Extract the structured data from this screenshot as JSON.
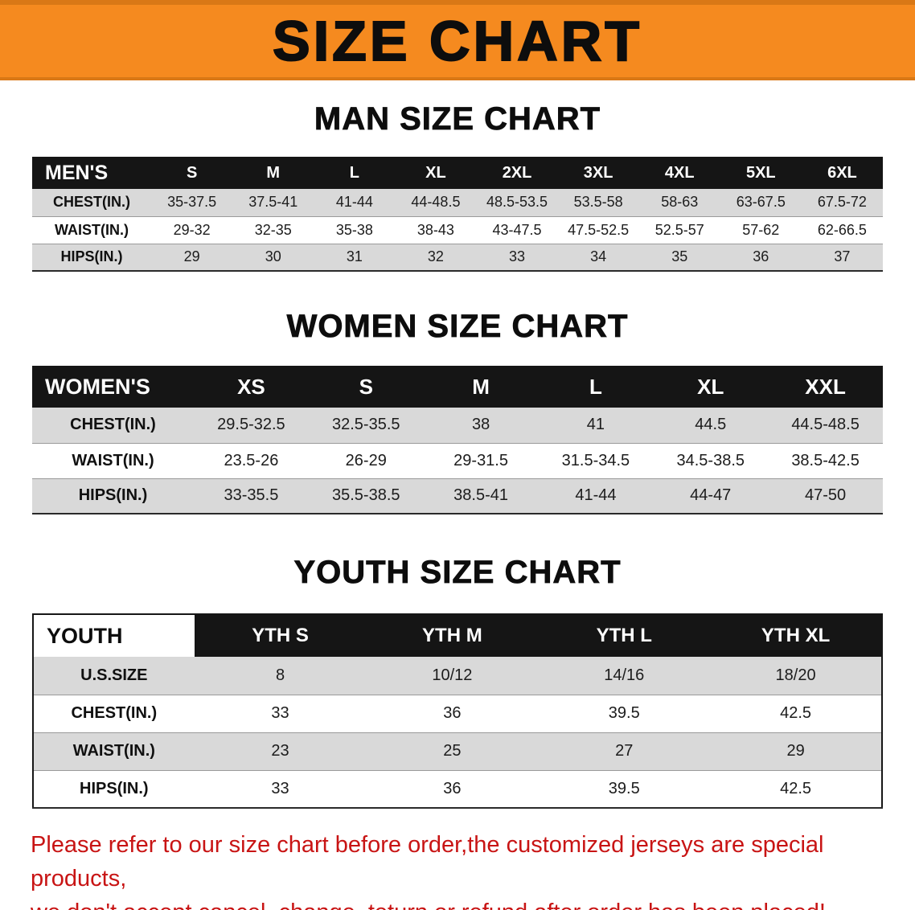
{
  "banner": {
    "title": "SIZE CHART",
    "bg_color": "#f58a1f",
    "text_color": "#0d0d0d"
  },
  "colors": {
    "banner_orange": "#f58a1f",
    "header_black": "#151515",
    "row_gray": "#d9d9d9",
    "disclaimer_red": "#c81414"
  },
  "sections": [
    {
      "heading": "MAN SIZE CHART",
      "table": {
        "name": "mens-size-table",
        "label_header": "MEN'S",
        "columns": [
          "S",
          "M",
          "L",
          "XL",
          "2XL",
          "3XL",
          "4XL",
          "5XL",
          "6XL"
        ],
        "rows": [
          {
            "label": "CHEST(IN.)",
            "values": [
              "35-37.5",
              "37.5-41",
              "41-44",
              "44-48.5",
              "48.5-53.5",
              "53.5-58",
              "58-63",
              "63-67.5",
              "67.5-72"
            ]
          },
          {
            "label": "WAIST(IN.)",
            "values": [
              "29-32",
              "32-35",
              "35-38",
              "38-43",
              "43-47.5",
              "47.5-52.5",
              "52.5-57",
              "57-62",
              "62-66.5"
            ]
          },
          {
            "label": "HIPS(IN.)",
            "values": [
              "29",
              "30",
              "31",
              "32",
              "33",
              "34",
              "35",
              "36",
              "37"
            ]
          }
        ]
      }
    },
    {
      "heading": "WOMEN SIZE CHART",
      "table": {
        "name": "womens-size-table",
        "label_header": "WOMEN'S",
        "columns": [
          "XS",
          "S",
          "M",
          "L",
          "XL",
          "XXL"
        ],
        "rows": [
          {
            "label": "CHEST(IN.)",
            "values": [
              "29.5-32.5",
              "32.5-35.5",
              "38",
              "41",
              "44.5",
              "44.5-48.5"
            ]
          },
          {
            "label": "WAIST(IN.)",
            "values": [
              "23.5-26",
              "26-29",
              "29-31.5",
              "31.5-34.5",
              "34.5-38.5",
              "38.5-42.5"
            ]
          },
          {
            "label": "HIPS(IN.)",
            "values": [
              "33-35.5",
              "35.5-38.5",
              "38.5-41",
              "41-44",
              "44-47",
              "47-50"
            ]
          }
        ]
      }
    },
    {
      "heading": "YOUTH SIZE CHART",
      "table": {
        "name": "youth-size-table",
        "label_header": "YOUTH",
        "columns": [
          "YTH S",
          "YTH M",
          "YTH L",
          "YTH XL"
        ],
        "rows": [
          {
            "label": "U.S.SIZE",
            "values": [
              "8",
              "10/12",
              "14/16",
              "18/20"
            ]
          },
          {
            "label": "CHEST(IN.)",
            "values": [
              "33",
              "36",
              "39.5",
              "42.5"
            ]
          },
          {
            "label": "WAIST(IN.)",
            "values": [
              "23",
              "25",
              "27",
              "29"
            ]
          },
          {
            "label": "HIPS(IN.)",
            "values": [
              "33",
              "36",
              "39.5",
              "42.5"
            ]
          }
        ]
      }
    }
  ],
  "disclaimer": {
    "line1": "Please refer to our size chart before order,the customized jerseys are special products,",
    "line2": "we don't accept cancel, change, teturn or refund after order has been placed!"
  }
}
